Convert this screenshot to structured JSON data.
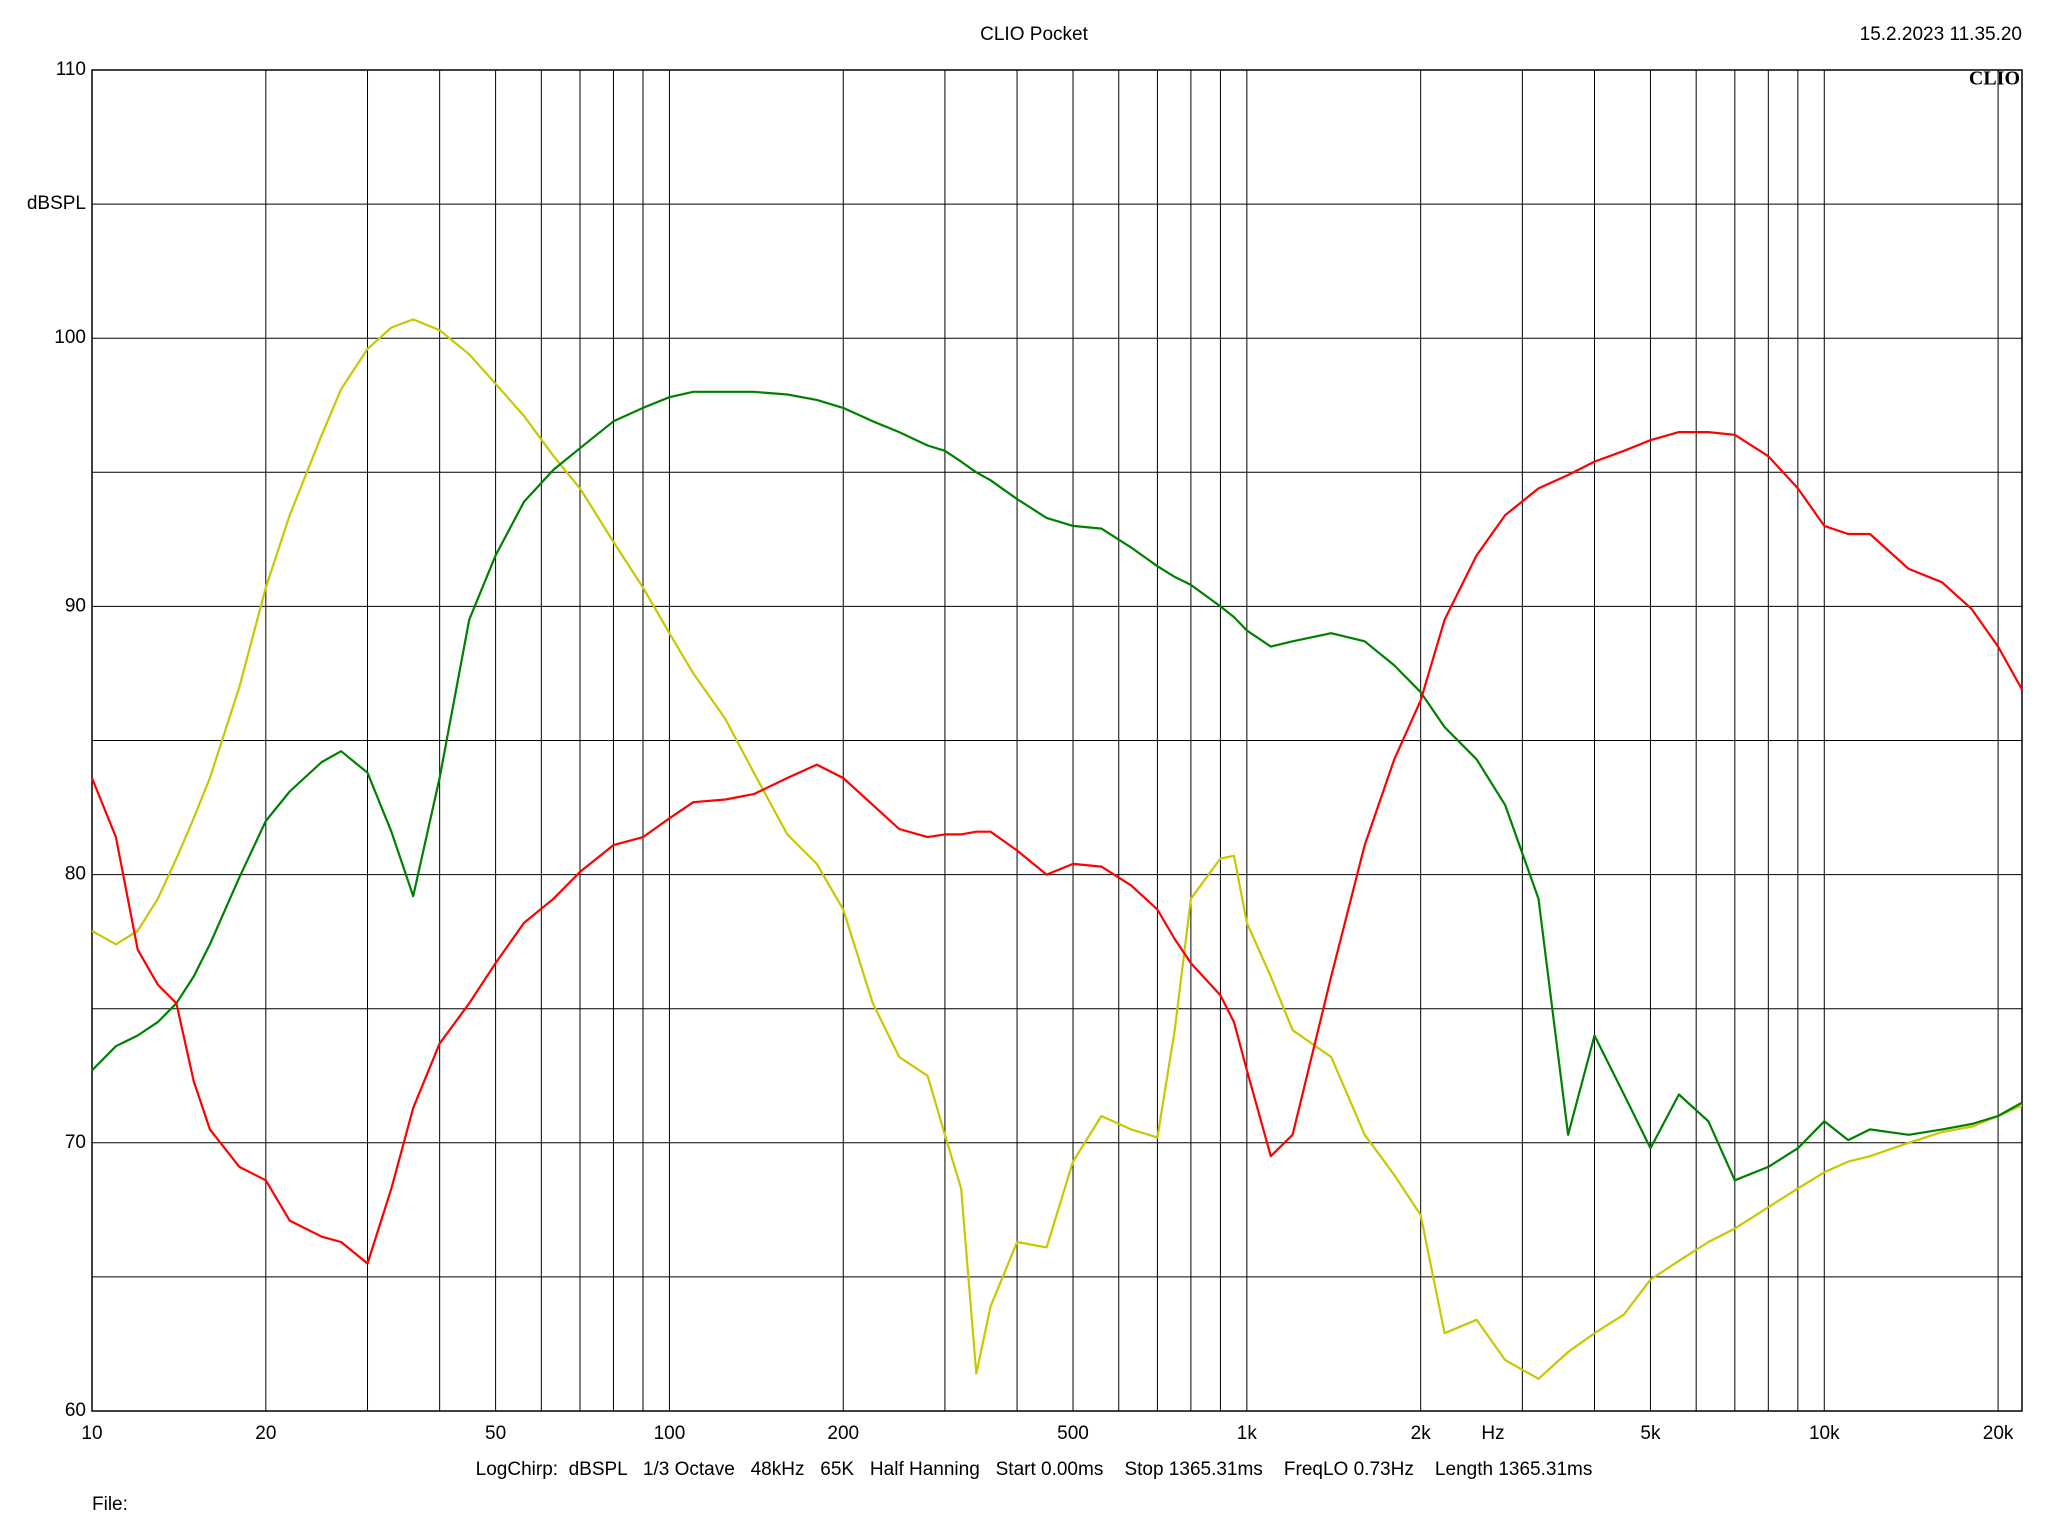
{
  "chart_data": {
    "type": "line",
    "title": "CLIO Pocket",
    "timestamp": "15.2.2023 11.35.20",
    "logo": "CLIO",
    "y_label": "dBSPL",
    "x_label": "Hz",
    "subtitle": "LogChirp:  dBSPL   1/3 Octave   48kHz   65K   Half Hanning   Start 0.00ms    Stop 1365.31ms    FreqLO 0.73Hz    Length 1365.31ms",
    "file_label": "File:",
    "log_x": true,
    "grid": true,
    "xlim": [
      10,
      22000
    ],
    "ylim": [
      60,
      110
    ],
    "xticks": [
      10,
      20,
      50,
      100,
      200,
      500,
      {
        "value": 1000,
        "label": "1k"
      },
      {
        "value": 2000,
        "label": "2k"
      },
      {
        "value": 5000,
        "label": "5k"
      },
      {
        "value": 10000,
        "label": "10k"
      },
      {
        "value": 20000,
        "label": "20k"
      }
    ],
    "xgrid": [
      30,
      40,
      60,
      70,
      80,
      90,
      300,
      400,
      600,
      700,
      800,
      900,
      3000,
      4000,
      6000,
      7000,
      8000,
      9000
    ],
    "yticks": [
      60,
      70,
      80,
      90,
      100,
      110
    ],
    "ygrid": [
      65,
      75,
      85,
      95,
      105
    ],
    "x": [
      10,
      11,
      12,
      13,
      14,
      15,
      16,
      18,
      20,
      22,
      25,
      27,
      30,
      33,
      36,
      40,
      45,
      50,
      56,
      63,
      70,
      80,
      90,
      100,
      110,
      125,
      140,
      160,
      180,
      200,
      225,
      250,
      280,
      300,
      320,
      340,
      360,
      400,
      450,
      500,
      560,
      630,
      700,
      750,
      800,
      900,
      950,
      1000,
      1100,
      1200,
      1400,
      1600,
      1800,
      2000,
      2200,
      2500,
      2800,
      3200,
      3600,
      4000,
      4500,
      5000,
      5600,
      6300,
      7000,
      8000,
      9000,
      10000,
      11000,
      12000,
      14000,
      16000,
      18000,
      20000,
      22000
    ],
    "series": [
      {
        "color": "#c8c800",
        "values": [
          77.9,
          77.4,
          77.9,
          79.1,
          80.6,
          82.1,
          83.6,
          87.0,
          90.7,
          93.4,
          96.4,
          98.1,
          99.6,
          100.4,
          100.7,
          100.3,
          99.4,
          98.3,
          97.1,
          95.6,
          94.4,
          92.4,
          90.7,
          89.0,
          87.5,
          85.8,
          83.8,
          81.5,
          80.4,
          78.7,
          75.2,
          73.2,
          72.5,
          70.3,
          68.3,
          61.4,
          63.9,
          66.3,
          66.1,
          69.3,
          71.0,
          70.5,
          70.2,
          74.2,
          79.1,
          80.6,
          80.7,
          78.2,
          76.2,
          74.2,
          73.2,
          70.3,
          68.8,
          67.3,
          62.9,
          63.4,
          61.9,
          61.2,
          62.2,
          62.9,
          63.6,
          64.9,
          65.6,
          66.3,
          66.8,
          67.6,
          68.3,
          68.9,
          69.3,
          69.5,
          70.0,
          70.4,
          70.6,
          71.0,
          71.4
        ]
      },
      {
        "color": "#008000",
        "values": [
          72.7,
          73.6,
          74.0,
          74.5,
          75.2,
          76.2,
          77.4,
          79.9,
          82.0,
          83.1,
          84.2,
          84.6,
          83.8,
          81.6,
          79.2,
          83.6,
          89.5,
          91.9,
          93.9,
          95.1,
          95.9,
          96.9,
          97.4,
          97.8,
          98.0,
          98.0,
          98.0,
          97.9,
          97.7,
          97.4,
          96.9,
          96.5,
          96.0,
          95.8,
          95.4,
          95.0,
          94.7,
          94.0,
          93.3,
          93.0,
          92.9,
          92.2,
          91.5,
          91.1,
          90.8,
          90.0,
          89.6,
          89.1,
          88.5,
          88.7,
          89.0,
          88.7,
          87.8,
          86.8,
          85.5,
          84.3,
          82.6,
          79.1,
          70.3,
          74.0,
          71.8,
          69.8,
          71.8,
          70.8,
          68.6,
          69.1,
          69.8,
          70.8,
          70.1,
          70.5,
          70.3,
          70.5,
          70.7,
          71.0,
          71.5
        ]
      },
      {
        "color": "#ff0000",
        "values": [
          83.6,
          81.4,
          77.2,
          75.9,
          75.2,
          72.3,
          70.5,
          69.1,
          68.6,
          67.1,
          66.5,
          66.3,
          65.5,
          68.3,
          71.3,
          73.7,
          75.2,
          76.7,
          78.2,
          79.1,
          80.1,
          81.1,
          81.4,
          82.1,
          82.7,
          82.8,
          83.0,
          83.6,
          84.1,
          83.6,
          82.6,
          81.7,
          81.4,
          81.5,
          81.5,
          81.6,
          81.6,
          80.9,
          80.0,
          80.4,
          80.3,
          79.6,
          78.7,
          77.6,
          76.7,
          75.5,
          74.5,
          72.7,
          69.5,
          70.3,
          76.2,
          81.1,
          84.3,
          86.5,
          89.5,
          91.9,
          93.4,
          94.4,
          94.9,
          95.4,
          95.8,
          96.2,
          96.5,
          96.5,
          96.4,
          95.6,
          94.4,
          93.0,
          92.7,
          92.7,
          91.4,
          90.9,
          89.9,
          88.5,
          86.9
        ]
      }
    ]
  }
}
